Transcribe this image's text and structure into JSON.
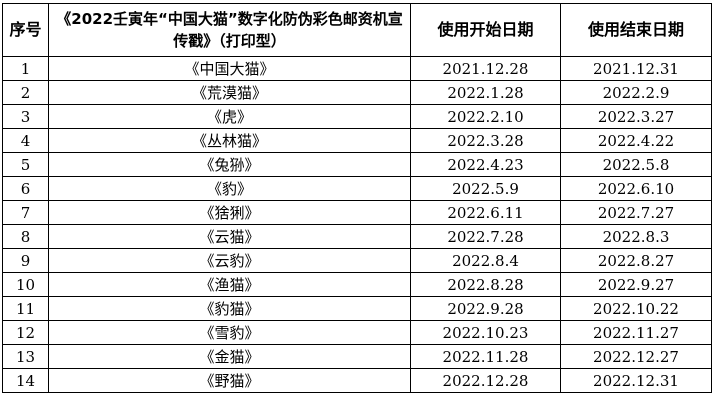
{
  "table": {
    "headers": {
      "seq": "序号",
      "name": "《2022壬寅年“中国大猫”数字化防伪彩色邮资机宣传戳》（打印型）",
      "start": "使用开始日期",
      "end": "使用结束日期"
    },
    "rows": [
      {
        "seq": "1",
        "name": "《中国大猫》",
        "start": "2021.12.28",
        "end": "2021.12.31"
      },
      {
        "seq": "2",
        "name": "《荒漠猫》",
        "start": "2022.1.28",
        "end": "2022.2.9"
      },
      {
        "seq": "3",
        "name": "《虎》",
        "start": "2022.2.10",
        "end": "2022.3.27"
      },
      {
        "seq": "4",
        "name": "《丛林猫》",
        "start": "2022.3.28",
        "end": "2022.4.22"
      },
      {
        "seq": "5",
        "name": "《兔狲》",
        "start": "2022.4.23",
        "end": "2022.5.8"
      },
      {
        "seq": "6",
        "name": "《豹》",
        "start": "2022.5.9",
        "end": "2022.6.10"
      },
      {
        "seq": "7",
        "name": "《猞猁》",
        "start": "2022.6.11",
        "end": "2022.7.27"
      },
      {
        "seq": "8",
        "name": "《云猫》",
        "start": "2022.7.28",
        "end": "2022.8.3"
      },
      {
        "seq": "9",
        "name": "《云豹》",
        "start": "2022.8.4",
        "end": "2022.8.27"
      },
      {
        "seq": "10",
        "name": "《渔猫》",
        "start": "2022.8.28",
        "end": "2022.9.27"
      },
      {
        "seq": "11",
        "name": "《豹猫》",
        "start": "2022.9.28",
        "end": "2022.10.22"
      },
      {
        "seq": "12",
        "name": "《雪豹》",
        "start": "2022.10.23",
        "end": "2022.11.27"
      },
      {
        "seq": "13",
        "name": "《金猫》",
        "start": "2022.11.28",
        "end": "2022.12.27"
      },
      {
        "seq": "14",
        "name": "《野猫》",
        "start": "2022.12.28",
        "end": "2022.12.31"
      }
    ]
  }
}
